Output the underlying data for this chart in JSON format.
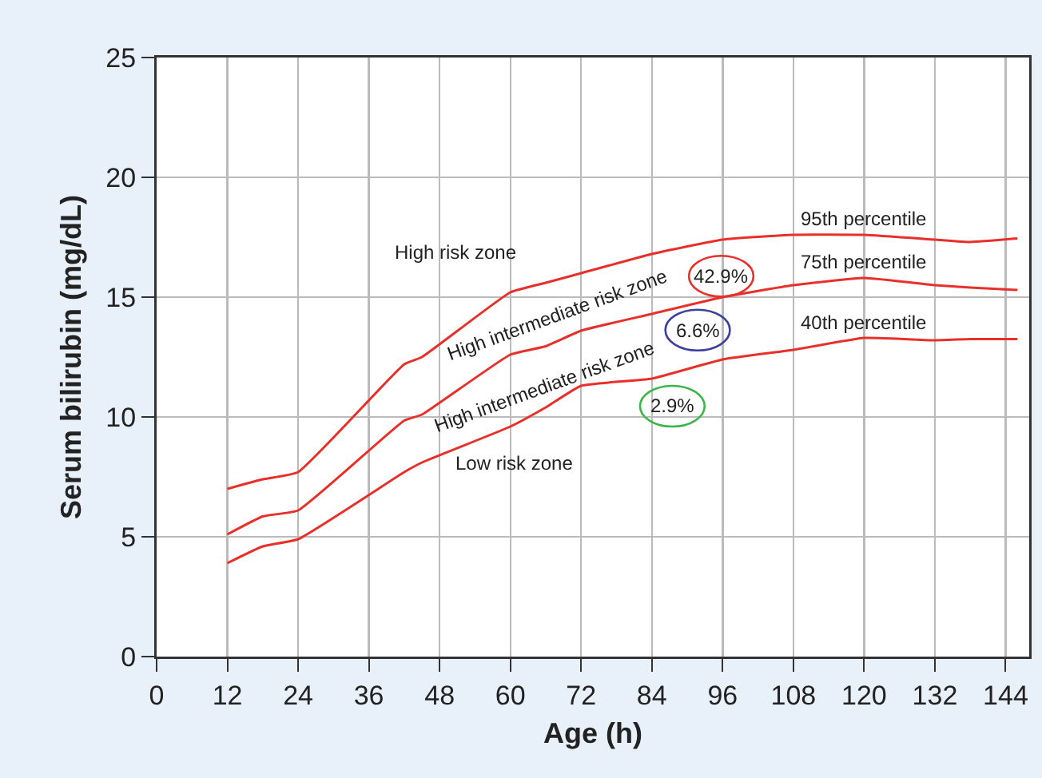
{
  "chart_data": {
    "type": "line",
    "xlabel": "Age (h)",
    "ylabel": "Serum bilirubin (mg/dL)",
    "x": [
      12,
      18,
      24,
      42,
      45,
      60,
      66,
      72,
      84,
      96,
      108,
      120,
      132,
      138,
      146
    ],
    "series": [
      {
        "name": "95th percentile",
        "color": "#e8302a",
        "values": [
          7.0,
          7.4,
          7.7,
          12.2,
          12.5,
          15.2,
          15.6,
          16.0,
          16.8,
          17.4,
          17.6,
          17.6,
          17.4,
          17.3,
          17.45
        ]
      },
      {
        "name": "75th percentile",
        "color": "#e8302a",
        "values": [
          5.1,
          5.85,
          6.1,
          9.85,
          10.1,
          12.6,
          12.95,
          13.6,
          14.3,
          15.0,
          15.5,
          15.8,
          15.5,
          15.4,
          15.3
        ]
      },
      {
        "name": "40th percentile",
        "color": "#e8302a",
        "values": [
          3.9,
          4.6,
          4.9,
          7.7,
          8.1,
          9.6,
          10.4,
          11.3,
          11.6,
          12.4,
          12.8,
          13.3,
          13.2,
          13.25,
          13.25
        ]
      }
    ],
    "xlim": [
      0,
      148
    ],
    "xticks": [
      0,
      12,
      24,
      36,
      48,
      60,
      72,
      84,
      96,
      108,
      120,
      132,
      144
    ],
    "ylim": [
      0,
      25
    ],
    "yticks": [
      0,
      5,
      10,
      15,
      20,
      25
    ],
    "grid": true,
    "legend": false,
    "marker": "none",
    "line_style": "solid",
    "annotations": [
      "High risk zone",
      "High intermediate risk zone",
      "High intermediate risk zone",
      "Low risk zone",
      "42.9%",
      "6.6%",
      "2.9%"
    ]
  }
}
